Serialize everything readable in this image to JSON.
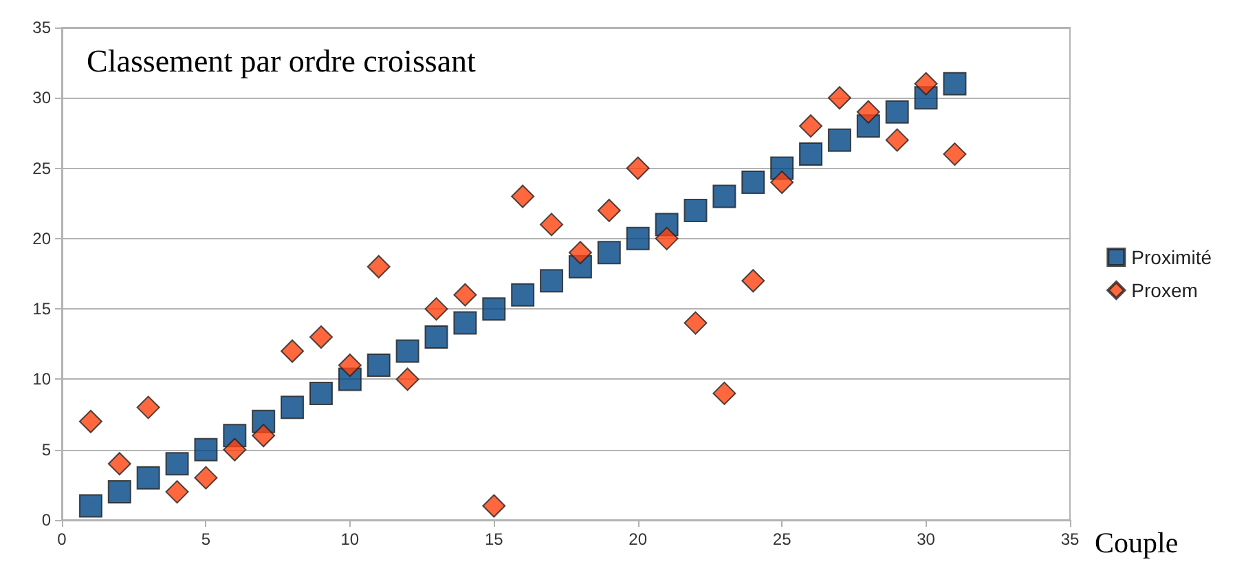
{
  "chart_data": {
    "type": "scatter",
    "title": "Classement par ordre croissant",
    "xlabel": "Couple",
    "x": [
      1,
      2,
      3,
      4,
      5,
      6,
      7,
      8,
      9,
      10,
      11,
      12,
      13,
      14,
      15,
      16,
      17,
      18,
      19,
      20,
      21,
      22,
      23,
      24,
      25,
      26,
      27,
      28,
      29,
      30,
      31
    ],
    "series": [
      {
        "name": "Proximité",
        "color": "#004586",
        "marker": "square",
        "values": [
          1,
          2,
          3,
          4,
          5,
          6,
          7,
          8,
          9,
          10,
          11,
          12,
          13,
          14,
          15,
          16,
          17,
          18,
          19,
          20,
          21,
          22,
          23,
          24,
          25,
          26,
          27,
          28,
          29,
          30,
          31
        ]
      },
      {
        "name": "Proxem",
        "color": "#ff420e",
        "marker": "diamond",
        "values": [
          7,
          4,
          8,
          2,
          3,
          5,
          6,
          12,
          13,
          11,
          18,
          10,
          15,
          16,
          1,
          23,
          21,
          19,
          22,
          25,
          20,
          14,
          9,
          17,
          24,
          28,
          30,
          29,
          27,
          31,
          26
        ]
      }
    ],
    "xlim": [
      0,
      35
    ],
    "xticks": [
      0,
      5,
      10,
      15,
      20,
      25,
      30,
      35
    ],
    "ylim": [
      0,
      35
    ],
    "yticks": [
      0,
      5,
      10,
      15,
      20,
      25,
      30,
      35
    ],
    "grid": "y",
    "legend": "right"
  }
}
